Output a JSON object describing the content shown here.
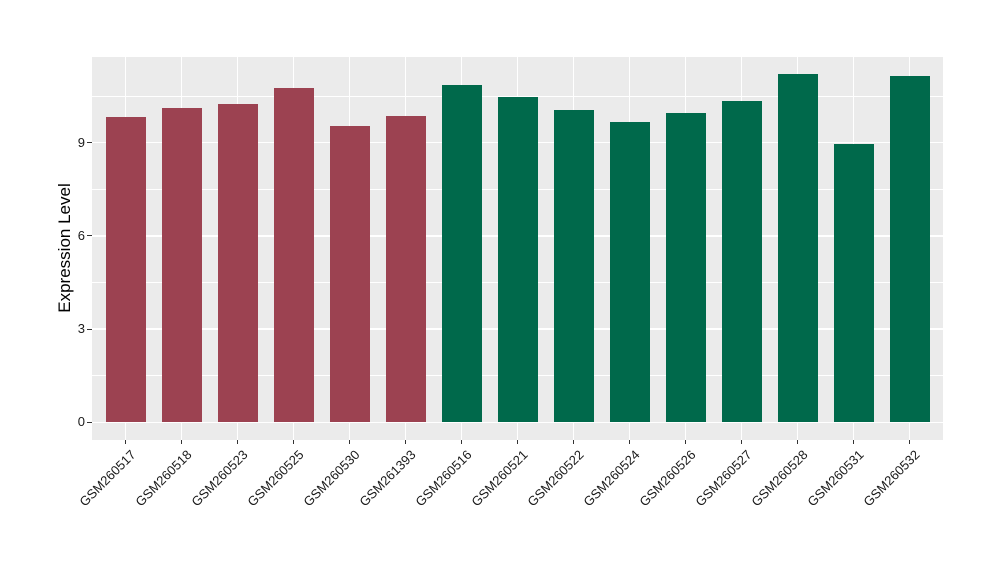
{
  "figure": {
    "colors": {
      "panel_background": "#EBEBEB",
      "gridline": "#FFFFFF",
      "axis_text": "#1A1A1A",
      "group_red": "#9C4251",
      "group_green": "#00694B"
    }
  },
  "chart_data": {
    "type": "bar",
    "title": "",
    "xlabel": "",
    "ylabel": "Expression Level",
    "categories": [
      "GSM260517",
      "GSM260518",
      "GSM260523",
      "GSM260525",
      "GSM260530",
      "GSM261393",
      "GSM260516",
      "GSM260521",
      "GSM260522",
      "GSM260524",
      "GSM260526",
      "GSM260527",
      "GSM260528",
      "GSM260531",
      "GSM260532"
    ],
    "values": [
      9.84,
      10.13,
      10.25,
      10.77,
      9.55,
      9.86,
      10.86,
      10.47,
      10.05,
      9.66,
      9.94,
      10.33,
      11.21,
      8.97,
      11.16
    ],
    "bar_colors": [
      "#9C4251",
      "#9C4251",
      "#9C4251",
      "#9C4251",
      "#9C4251",
      "#9C4251",
      "#00694B",
      "#00694B",
      "#00694B",
      "#00694B",
      "#00694B",
      "#00694B",
      "#00694B",
      "#00694B",
      "#00694B"
    ],
    "yticks": [
      0,
      3,
      6,
      9
    ],
    "minor_gridlines": [
      1.5,
      4.5,
      7.5,
      10.5
    ],
    "ylim": [
      0,
      11.8
    ],
    "grid": true,
    "legend": "none"
  }
}
